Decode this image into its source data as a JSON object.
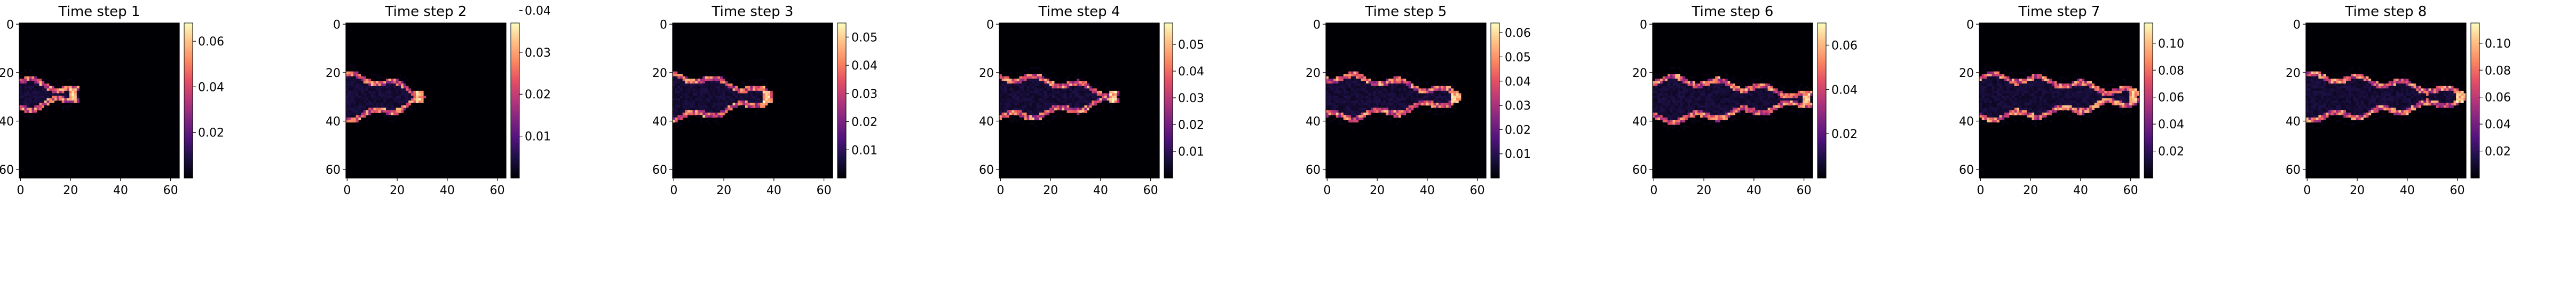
{
  "chart_data": [
    {
      "type": "heatmap",
      "title": "Time step 1",
      "xticks": [
        "0",
        "20",
        "40",
        "60"
      ],
      "yticks": [
        "0",
        "20",
        "40",
        "60"
      ],
      "colorbar_ticks": [
        "0.02",
        "0.04",
        "0.06"
      ],
      "colorbar_range": [
        0.0,
        0.068
      ],
      "colormap": "magma",
      "grid": false,
      "plume_extent_x": [
        0,
        22
      ],
      "plume_center_y": 29
    },
    {
      "type": "heatmap",
      "title": "Time step 2",
      "xticks": [
        "0",
        "20",
        "40",
        "60"
      ],
      "yticks": [
        "0",
        "20",
        "40",
        "60"
      ],
      "colorbar_ticks": [
        "0.01",
        "0.02",
        "0.03",
        "0.04"
      ],
      "colorbar_range": [
        0.0,
        0.037
      ],
      "colormap": "magma",
      "grid": false,
      "plume_extent_x": [
        0,
        30
      ],
      "plume_center_y": 30
    },
    {
      "type": "heatmap",
      "title": "Time step 3",
      "xticks": [
        "0",
        "20",
        "40",
        "60"
      ],
      "yticks": [
        "0",
        "20",
        "40",
        "60"
      ],
      "colorbar_ticks": [
        "0.01",
        "0.02",
        "0.03",
        "0.04",
        "0.05"
      ],
      "colorbar_range": [
        0.0,
        0.055
      ],
      "colormap": "magma",
      "grid": false,
      "plume_extent_x": [
        0,
        38
      ],
      "plume_center_y": 30
    },
    {
      "type": "heatmap",
      "title": "Time step 4",
      "xticks": [
        "0",
        "20",
        "40",
        "60"
      ],
      "yticks": [
        "0",
        "20",
        "40",
        "60"
      ],
      "colorbar_ticks": [
        "0.01",
        "0.02",
        "0.03",
        "0.04",
        "0.05"
      ],
      "colorbar_range": [
        0.0,
        0.058
      ],
      "colormap": "magma",
      "grid": false,
      "plume_extent_x": [
        0,
        46
      ],
      "plume_center_y": 30
    },
    {
      "type": "heatmap",
      "title": "Time step 5",
      "xticks": [
        "0",
        "20",
        "40",
        "60"
      ],
      "yticks": [
        "0",
        "20",
        "40",
        "60"
      ],
      "colorbar_ticks": [
        "0.01",
        "0.02",
        "0.03",
        "0.04",
        "0.05",
        "0.06"
      ],
      "colorbar_range": [
        0.0,
        0.064
      ],
      "colormap": "magma",
      "grid": false,
      "plume_extent_x": [
        0,
        52
      ],
      "plume_center_y": 30
    },
    {
      "type": "heatmap",
      "title": "Time step 6",
      "xticks": [
        "0",
        "20",
        "40",
        "60"
      ],
      "yticks": [
        "0",
        "20",
        "40",
        "60"
      ],
      "colorbar_ticks": [
        "0.02",
        "0.04",
        "0.06"
      ],
      "colorbar_range": [
        0.0,
        0.07
      ],
      "colormap": "magma",
      "grid": false,
      "plume_extent_x": [
        0,
        62
      ],
      "plume_center_y": 31
    },
    {
      "type": "heatmap",
      "title": "Time step 7",
      "xticks": [
        "0",
        "20",
        "40",
        "60"
      ],
      "yticks": [
        "0",
        "20",
        "40",
        "60"
      ],
      "colorbar_ticks": [
        "0.02",
        "0.04",
        "0.06",
        "0.08",
        "0.10"
      ],
      "colorbar_range": [
        0.0,
        0.115
      ],
      "colormap": "magma",
      "grid": false,
      "plume_extent_x": [
        0,
        62
      ],
      "plume_center_y": 30
    },
    {
      "type": "heatmap",
      "title": "Time step 8",
      "xticks": [
        "0",
        "20",
        "40",
        "60"
      ],
      "yticks": [
        "0",
        "20",
        "40",
        "60"
      ],
      "colorbar_ticks": [
        "0.02",
        "0.04",
        "0.06",
        "0.08",
        "0.10"
      ],
      "colorbar_range": [
        0.0,
        0.115
      ],
      "colormap": "magma",
      "grid": false,
      "plume_extent_x": [
        0,
        62
      ],
      "plume_center_y": 30
    }
  ]
}
